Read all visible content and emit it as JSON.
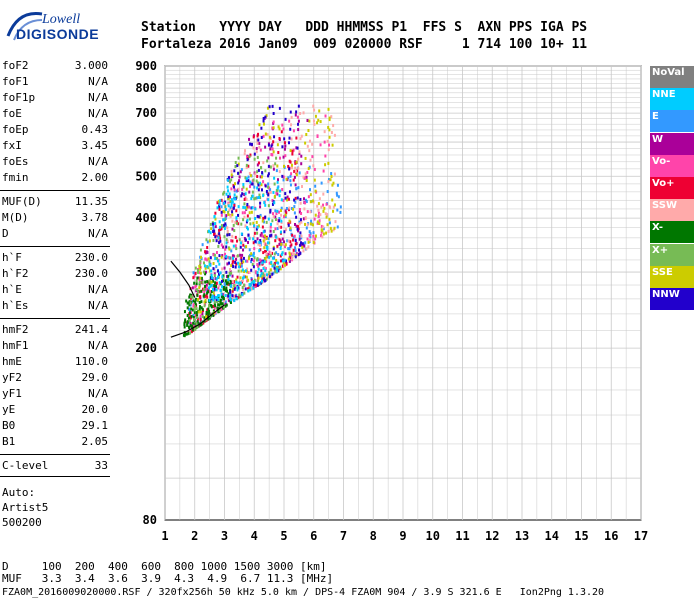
{
  "logo": {
    "line1": "Lowell",
    "line2": "DIGISONDE"
  },
  "header": {
    "labels": "Station   YYYY DAY   DDD HHMMSS P1  FFS S  AXN PPS IGA PS",
    "values": "Fortaleza 2016 Jan09  009 020000 RSF     1 714 100 10+ 11"
  },
  "params": [
    {
      "name": "foF2",
      "value": "3.000"
    },
    {
      "name": "foF1",
      "value": "N/A"
    },
    {
      "name": "foF1p",
      "value": "N/A"
    },
    {
      "name": "foE",
      "value": "N/A"
    },
    {
      "name": "foEp",
      "value": "0.43"
    },
    {
      "name": "fxI",
      "value": "3.45"
    },
    {
      "name": "foEs",
      "value": "N/A"
    },
    {
      "name": "fmin",
      "value": "2.00"
    },
    {
      "name": "MUF(D)",
      "value": "11.35"
    },
    {
      "name": "M(D)",
      "value": "3.78"
    },
    {
      "name": "D",
      "value": "N/A"
    },
    {
      "name": "h`F",
      "value": "230.0"
    },
    {
      "name": "h`F2",
      "value": "230.0"
    },
    {
      "name": "h`E",
      "value": "N/A"
    },
    {
      "name": "h`Es",
      "value": "N/A"
    },
    {
      "name": "hmF2",
      "value": "241.4"
    },
    {
      "name": "hmF1",
      "value": "N/A"
    },
    {
      "name": "hmE",
      "value": "110.0"
    },
    {
      "name": "yF2",
      "value": "29.0"
    },
    {
      "name": "yF1",
      "value": "N/A"
    },
    {
      "name": "yE",
      "value": "20.0"
    },
    {
      "name": "B0",
      "value": "29.1"
    },
    {
      "name": "B1",
      "value": "2.05"
    },
    {
      "name": "C-level",
      "value": "33"
    }
  ],
  "auto": [
    "Auto:",
    "Artist5",
    "500200"
  ],
  "legend": [
    {
      "label": "NoVal",
      "bg": "#808080",
      "fg": "#ffffff"
    },
    {
      "label": "NNE",
      "bg": "#00ccff",
      "fg": "#ffffff"
    },
    {
      "label": "E",
      "bg": "#3399ff",
      "fg": "#ffffff"
    },
    {
      "label": "W",
      "bg": "#aa0099",
      "fg": "#ffffff"
    },
    {
      "label": "Vo-",
      "bg": "#ff44aa",
      "fg": "#ffffff"
    },
    {
      "label": "Vo+",
      "bg": "#ee0033",
      "fg": "#ffffff"
    },
    {
      "label": "SSW",
      "bg": "#ffaaaa",
      "fg": "#ffffff"
    },
    {
      "label": "X-",
      "bg": "#007700",
      "fg": "#ffffff"
    },
    {
      "label": "X+",
      "bg": "#77bb55",
      "fg": "#ffffff"
    },
    {
      "label": "SSE",
      "bg": "#cccc00",
      "fg": "#ffffff"
    },
    {
      "label": "NNW",
      "bg": "#2200cc",
      "fg": "#ffffff"
    }
  ],
  "bottom": {
    "d_line": "D     100  200  400  600  800 1000 1500 3000 [km]",
    "muf_line": "MUF   3.3  3.4  3.6  3.9  4.3  4.9  6.7 11.3 [MHz]",
    "footer": "FZA0M_2016009020000.RSF / 320fx256h 50 kHz 5.0 km / DPS-4 FZA0M 904 / 3.9 S 321.6 E   Ion2Png 1.3.20"
  },
  "chart_data": {
    "type": "scatter",
    "xlim": [
      1,
      17
    ],
    "ylim": [
      80,
      900
    ],
    "x_ticks": [
      "1",
      "2",
      "3",
      "4",
      "5",
      "6",
      "7",
      "8",
      "9",
      "10",
      "11",
      "12",
      "13",
      "14",
      "15",
      "16",
      "17"
    ],
    "y_ticks": [
      "80",
      "200",
      "300",
      "400",
      "500",
      "600",
      "700",
      "800",
      "900"
    ],
    "grid": true,
    "scale_y": "log",
    "series": [
      {
        "name": "E",
        "color": "#3399ff",
        "x_range": [
          1.7,
          6.9
        ],
        "y_range": [
          225,
          530
        ]
      },
      {
        "name": "W",
        "color": "#aa0099",
        "x_range": [
          1.8,
          5.8
        ],
        "y_range": [
          215,
          700
        ]
      },
      {
        "name": "Vo-",
        "color": "#ff44aa",
        "x_range": [
          1.8,
          6.5
        ],
        "y_range": [
          220,
          720
        ]
      },
      {
        "name": "Vo+",
        "color": "#ee0033",
        "x_range": [
          1.7,
          5.5
        ],
        "y_range": [
          215,
          650
        ]
      },
      {
        "name": "SSW",
        "color": "#ffaaaa",
        "x_range": [
          2.5,
          6.7
        ],
        "y_range": [
          260,
          740
        ]
      },
      {
        "name": "X-",
        "color": "#007700",
        "x_range": [
          1.6,
          3.2
        ],
        "y_range": [
          215,
          300
        ]
      },
      {
        "name": "X+",
        "color": "#77bb55",
        "x_range": [
          1.8,
          4.8
        ],
        "y_range": [
          215,
          560
        ]
      },
      {
        "name": "SSE",
        "color": "#cccc00",
        "x_range": [
          2.0,
          6.7
        ],
        "y_range": [
          235,
          740
        ]
      },
      {
        "name": "NNW",
        "color": "#2200cc",
        "x_range": [
          2.5,
          5.6
        ],
        "y_range": [
          260,
          780
        ]
      },
      {
        "name": "NNE",
        "color": "#00ccff",
        "x_range": [
          2.3,
          5.0
        ],
        "y_range": [
          260,
          500
        ]
      }
    ],
    "profile_curves": [
      {
        "name": "lower",
        "points": [
          [
            1.2,
            212
          ],
          [
            1.7,
            218
          ],
          [
            2.2,
            228
          ],
          [
            2.6,
            240
          ],
          [
            3.0,
            252
          ]
        ]
      },
      {
        "name": "upper",
        "points": [
          [
            1.2,
            318
          ],
          [
            1.5,
            300
          ],
          [
            1.8,
            280
          ],
          [
            2.0,
            262
          ]
        ]
      }
    ]
  }
}
